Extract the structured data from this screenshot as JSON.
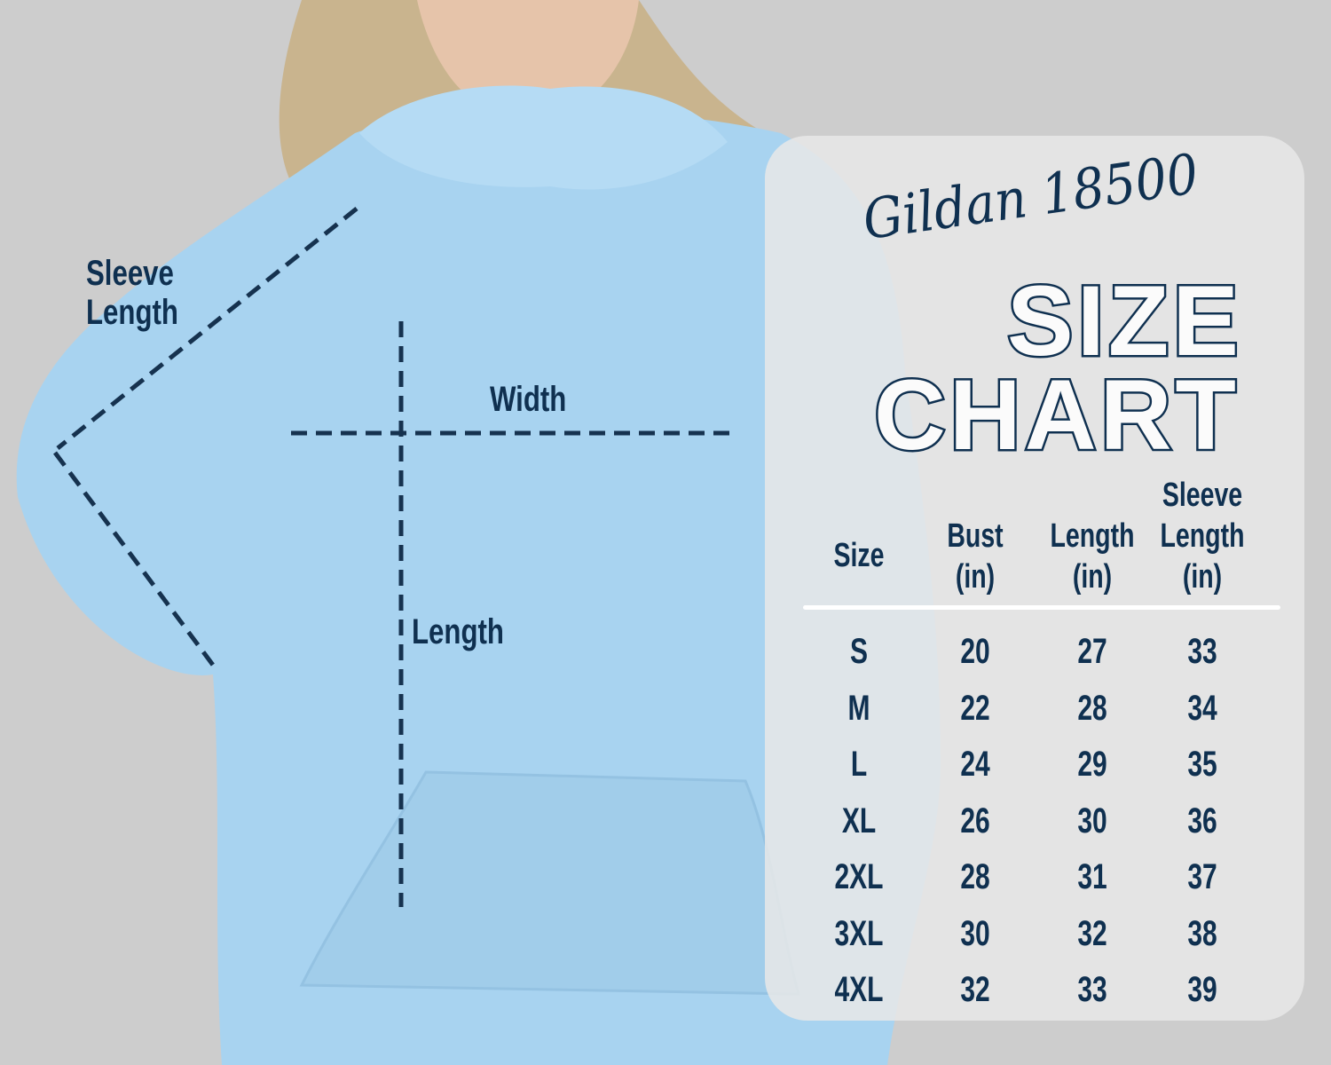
{
  "brand": "Gildan 18500",
  "title": {
    "line1": "SIZE",
    "line2": "CHART"
  },
  "measure_labels": {
    "sleeve": "Sleeve Length",
    "sleeve_l1": "Sleeve",
    "sleeve_l2": "Length",
    "width": "Width",
    "length": "Length"
  },
  "colors": {
    "text": "#0f3050",
    "hoodie": "#a8d3f0",
    "background": "#cdcdcd",
    "panel": "#e8e8e8"
  },
  "table": {
    "headers": [
      {
        "l1": "",
        "l2": "Size",
        "l3": ""
      },
      {
        "l1": "",
        "l2": "Bust",
        "l3": "(in)"
      },
      {
        "l1": "",
        "l2": "Length",
        "l3": "(in)"
      },
      {
        "l1": "Sleeve",
        "l2": "Length",
        "l3": "(in)"
      }
    ],
    "rows": [
      [
        "S",
        "20",
        "27",
        "33"
      ],
      [
        "M",
        "22",
        "28",
        "34"
      ],
      [
        "L",
        "24",
        "29",
        "35"
      ],
      [
        "XL",
        "26",
        "30",
        "36"
      ],
      [
        "2XL",
        "28",
        "31",
        "37"
      ],
      [
        "3XL",
        "30",
        "32",
        "38"
      ],
      [
        "4XL",
        "32",
        "33",
        "39"
      ]
    ]
  }
}
